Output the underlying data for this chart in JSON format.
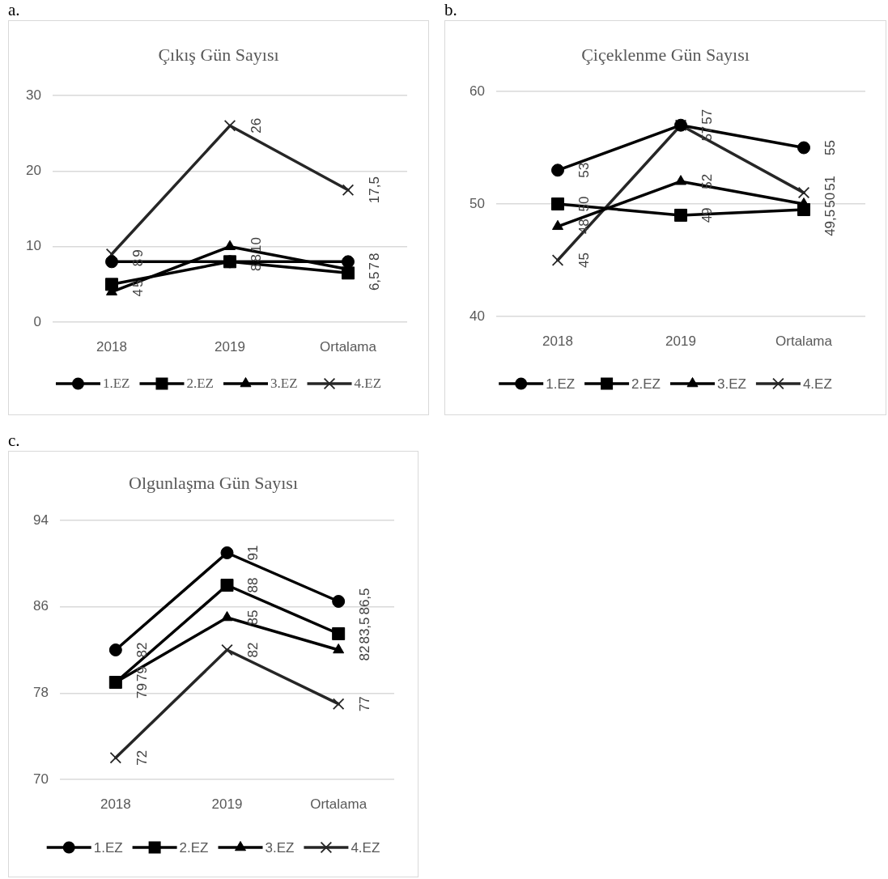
{
  "chart_data": [
    {
      "type": "line",
      "title": "Çıkış Gün Sayısı",
      "annotations": [
        "a."
      ],
      "categories": [
        "2018",
        "2019",
        "Ortalama"
      ],
      "series": [
        {
          "name": "1.EZ",
          "color": "#000000",
          "marker": "circle",
          "values": [
            8,
            8,
            8
          ],
          "value_labels": [
            "8",
            "8",
            "8"
          ]
        },
        {
          "name": "2.EZ",
          "color": "#000000",
          "marker": "square",
          "values": [
            5,
            8,
            6.5
          ],
          "value_labels": [
            "5",
            "8",
            "6,5"
          ]
        },
        {
          "name": "3.EZ",
          "color": "#000000",
          "marker": "triangle",
          "values": [
            4,
            10,
            7
          ],
          "value_labels": [
            "4",
            "10",
            "7"
          ]
        },
        {
          "name": "4.EZ",
          "color": "#262626",
          "marker": "cross",
          "values": [
            9,
            26,
            17.5
          ],
          "value_labels": [
            "9",
            "26",
            "17,5"
          ]
        }
      ],
      "ylim": [
        0,
        30
      ],
      "yticks": [
        0,
        10,
        20,
        30
      ],
      "grid": "y",
      "legend": "bottom"
    },
    {
      "type": "line",
      "title": "Çiçeklenme Gün Sayısı",
      "annotations": [
        "b."
      ],
      "categories": [
        "2018",
        "2019",
        "Ortalama"
      ],
      "series": [
        {
          "name": "1.EZ",
          "color": "#000000",
          "marker": "circle",
          "values": [
            53,
            57,
            55
          ],
          "value_labels": [
            "53",
            "57",
            "55"
          ]
        },
        {
          "name": "2.EZ",
          "color": "#000000",
          "marker": "square",
          "values": [
            50,
            49,
            49.5
          ],
          "value_labels": [
            "50",
            "49",
            "49,5"
          ]
        },
        {
          "name": "3.EZ",
          "color": "#000000",
          "marker": "triangle",
          "values": [
            48,
            52,
            50
          ],
          "value_labels": [
            "48",
            "52",
            "50"
          ]
        },
        {
          "name": "4.EZ",
          "color": "#262626",
          "marker": "cross",
          "values": [
            45,
            57,
            51
          ],
          "value_labels": [
            "45",
            "57",
            "51"
          ]
        }
      ],
      "ylim": [
        40,
        60
      ],
      "yticks": [
        40,
        50,
        60
      ],
      "grid": "y",
      "legend": "bottom"
    },
    {
      "type": "line",
      "title": "Olgunlaşma Gün Sayısı",
      "annotations": [
        "c."
      ],
      "categories": [
        "2018",
        "2019",
        "Ortalama"
      ],
      "series": [
        {
          "name": "1.EZ",
          "color": "#000000",
          "marker": "circle",
          "values": [
            82,
            91,
            86.5
          ],
          "value_labels": [
            "82",
            "91",
            "86,5"
          ]
        },
        {
          "name": "2.EZ",
          "color": "#000000",
          "marker": "square",
          "values": [
            79,
            88,
            83.5
          ],
          "value_labels": [
            "79",
            "88",
            "83,5"
          ]
        },
        {
          "name": "3.EZ",
          "color": "#000000",
          "marker": "triangle",
          "values": [
            79,
            85,
            82
          ],
          "value_labels": [
            "79",
            "85",
            "82"
          ]
        },
        {
          "name": "4.EZ",
          "color": "#262626",
          "marker": "cross",
          "values": [
            72,
            82,
            77
          ],
          "value_labels": [
            "72",
            "82",
            "77"
          ]
        }
      ],
      "ylim": [
        70,
        94
      ],
      "yticks": [
        70,
        78,
        86,
        94
      ],
      "grid": "y",
      "legend": "bottom"
    }
  ]
}
